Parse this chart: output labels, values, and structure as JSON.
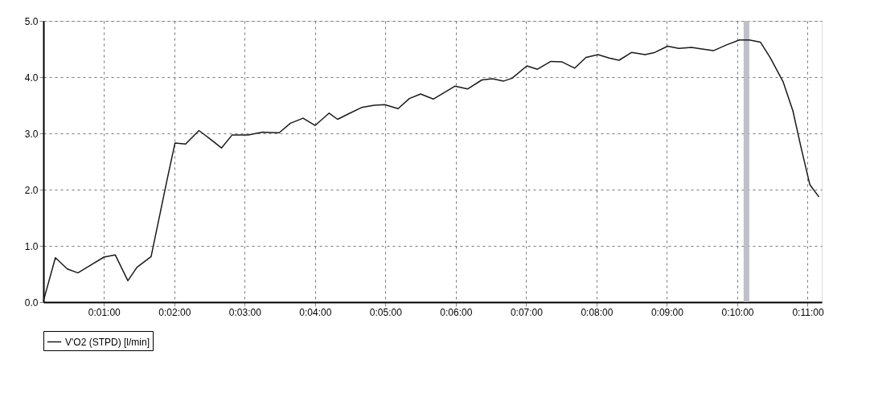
{
  "chart_data": {
    "type": "line",
    "x": [
      0.14,
      0.31,
      0.48,
      0.63,
      0.79,
      1.0,
      1.16,
      1.34,
      1.47,
      1.67,
      1.9,
      2.01,
      2.16,
      2.35,
      2.5,
      2.67,
      2.82,
      3.05,
      3.25,
      3.49,
      3.65,
      3.83,
      4.0,
      4.2,
      4.32,
      4.48,
      4.66,
      4.84,
      4.99,
      5.18,
      5.34,
      5.5,
      5.68,
      5.99,
      6.17,
      6.37,
      6.52,
      6.68,
      6.8,
      7.01,
      7.16,
      7.35,
      7.51,
      7.69,
      7.85,
      8.02,
      8.18,
      8.32,
      8.5,
      8.69,
      8.83,
      9.01,
      9.17,
      9.35,
      9.5,
      9.66,
      9.84,
      10.03,
      10.17,
      10.33,
      10.47,
      10.65,
      10.79,
      10.9,
      11.03,
      11.16
    ],
    "series": [
      {
        "name": "V'O2 (STPD) [l/min]",
        "color": "#1a1a1a",
        "values": [
          0.02,
          0.79,
          0.59,
          0.52,
          0.64,
          0.8,
          0.84,
          0.38,
          0.62,
          0.81,
          2.19,
          2.83,
          2.81,
          3.05,
          2.91,
          2.74,
          2.97,
          2.97,
          3.02,
          3.01,
          3.18,
          3.27,
          3.14,
          3.36,
          3.25,
          3.35,
          3.46,
          3.5,
          3.51,
          3.44,
          3.62,
          3.7,
          3.61,
          3.84,
          3.79,
          3.95,
          3.97,
          3.93,
          3.98,
          4.2,
          4.14,
          4.28,
          4.27,
          4.16,
          4.35,
          4.4,
          4.34,
          4.3,
          4.44,
          4.4,
          4.44,
          4.55,
          4.51,
          4.53,
          4.5,
          4.47,
          4.57,
          4.66,
          4.66,
          4.62,
          4.34,
          3.92,
          3.4,
          2.78,
          2.09,
          1.87
        ]
      }
    ],
    "xlim": [
      0.14,
      11.2
    ],
    "xticks": [
      {
        "value": 1,
        "label": "0:01:00"
      },
      {
        "value": 2,
        "label": "0:02:00"
      },
      {
        "value": 3,
        "label": "0:03:00"
      },
      {
        "value": 4,
        "label": "0:04:00"
      },
      {
        "value": 5,
        "label": "0:05:00"
      },
      {
        "value": 6,
        "label": "0:06:00"
      },
      {
        "value": 7,
        "label": "0:07:00"
      },
      {
        "value": 8,
        "label": "0:08:00"
      },
      {
        "value": 9,
        "label": "0:09:00"
      },
      {
        "value": 10,
        "label": "0:10:00"
      },
      {
        "value": 11,
        "label": "0:11:00"
      }
    ],
    "ylim": [
      0,
      5
    ],
    "yticks": [
      {
        "value": 0,
        "label": "0.0"
      },
      {
        "value": 1,
        "label": "1.0"
      },
      {
        "value": 2,
        "label": "2.0"
      },
      {
        "value": 3,
        "label": "3.0"
      },
      {
        "value": 4,
        "label": "4.0"
      },
      {
        "value": 5,
        "label": "5.0"
      }
    ],
    "bands": [
      {
        "axis": "x",
        "from": 10.09,
        "to": 10.17,
        "color": "#b8b8c4"
      }
    ],
    "grid": true,
    "legend": "bottom",
    "line_style": "solid",
    "marker": "none"
  }
}
